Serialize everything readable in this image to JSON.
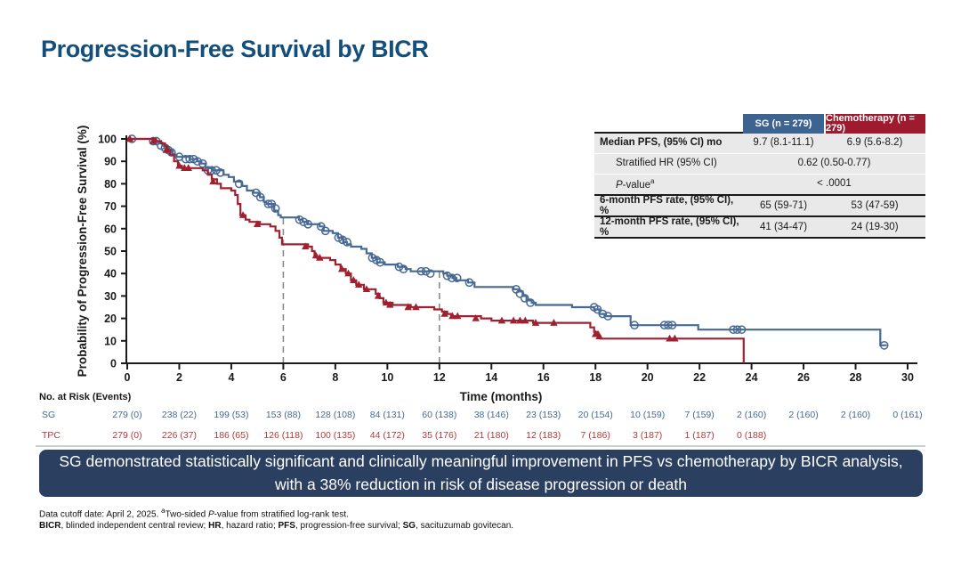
{
  "slide": {
    "title": "Progression-Free Survival by BICR"
  },
  "colors": {
    "title": "#144f7c",
    "sg_curve": "#476a94",
    "tpc_curve": "#a02030",
    "sg_header_bg": "#3d6390",
    "tpc_header_bg": "#9e1b2f",
    "banner_bg": "#2b4060",
    "risk_sg_text": "#476a94",
    "risk_tpc_text": "#b23a3a",
    "dashed_line": "#8a8a8a"
  },
  "stats_table": {
    "columns": [
      {
        "label": "SG (n = 279)"
      },
      {
        "label": "Chemotherapy (n = 279)"
      }
    ],
    "rows": [
      {
        "label": "Median PFS, (95% CI) mo",
        "v1": "9.7 (8.1-11.1)",
        "v2": "6.9 (5.6-8.2)"
      },
      {
        "label": "Stratified HR (95% CI)",
        "vspan": "0.62 (0.50-0.77)"
      },
      {
        "label_i": "P",
        "label_rest": "-value",
        "label_sup": "a",
        "vspan": "< .0001"
      },
      {
        "label": "6-month PFS rate, (95% CI), %",
        "v1": "65 (59-71)",
        "v2": "53 (47-59)"
      },
      {
        "label": "12-month PFS rate, (95% CI), %",
        "v1": "41 (34-47)",
        "v2": "24 (19-30)"
      }
    ]
  },
  "banner": {
    "line1": "SG demonstrated statistically significant and clinically meaningful improvement in PFS vs chemotherapy by BICR analysis,",
    "line2": "with a 38% reduction in risk of disease progression or death"
  },
  "footnotes": {
    "line1": {
      "t1": "Data cutoff date: April 2, 2025. ",
      "sup": "a",
      "t2": "Two-sided ",
      "i": "P",
      "t3": "-value from stratified log-rank test."
    },
    "line2": {
      "b1": "BICR",
      "t1": ", blinded independent central review; ",
      "b2": "HR",
      "t2": ", hazard ratio; ",
      "b3": "PFS",
      "t3": ", progression-free survival; ",
      "b4": "SG",
      "t4": ", sacituzumab govitecan."
    }
  },
  "chart_data": {
    "type": "line",
    "subtype": "kaplan-meier-step",
    "title": "",
    "xlabel": "Time (months)",
    "ylabel": "Probability of Progression-Free Survival (%)",
    "xlim": [
      0,
      30
    ],
    "ylim": [
      0,
      100
    ],
    "xticks": [
      0,
      2,
      4,
      6,
      8,
      10,
      12,
      14,
      16,
      18,
      20,
      22,
      24,
      26,
      28,
      30
    ],
    "yticks": [
      0,
      10,
      20,
      30,
      40,
      50,
      60,
      70,
      80,
      90,
      100
    ],
    "grid": false,
    "reference_lines": [
      {
        "x": 6,
        "top": 65
      },
      {
        "x": 12,
        "top": 41
      }
    ],
    "series": [
      {
        "name": "SG",
        "color": "#476a94",
        "marker": "circle",
        "steps": [
          [
            0,
            100
          ],
          [
            0.85,
            100
          ],
          [
            1.05,
            99
          ],
          [
            1.2,
            98
          ],
          [
            1.35,
            97
          ],
          [
            1.5,
            96
          ],
          [
            1.6,
            95
          ],
          [
            1.75,
            93
          ],
          [
            1.9,
            92
          ],
          [
            2.4,
            91
          ],
          [
            2.7,
            90
          ],
          [
            2.85,
            89
          ],
          [
            3.0,
            87
          ],
          [
            3.3,
            86
          ],
          [
            3.7,
            84
          ],
          [
            3.9,
            83
          ],
          [
            4.1,
            81
          ],
          [
            4.4,
            79
          ],
          [
            4.6,
            77
          ],
          [
            4.85,
            76
          ],
          [
            5.1,
            74
          ],
          [
            5.25,
            72
          ],
          [
            5.35,
            71
          ],
          [
            5.65,
            68
          ],
          [
            5.8,
            66
          ],
          [
            5.9,
            65
          ],
          [
            6.6,
            64
          ],
          [
            6.75,
            63
          ],
          [
            6.95,
            62
          ],
          [
            7.4,
            61
          ],
          [
            7.55,
            59
          ],
          [
            7.9,
            58
          ],
          [
            8.1,
            56
          ],
          [
            8.3,
            54
          ],
          [
            8.45,
            53
          ],
          [
            8.6,
            52
          ],
          [
            9.0,
            51
          ],
          [
            9.2,
            49
          ],
          [
            9.4,
            47
          ],
          [
            9.6,
            45
          ],
          [
            9.9,
            44
          ],
          [
            10.4,
            43
          ],
          [
            10.7,
            42
          ],
          [
            10.9,
            41
          ],
          [
            12.15,
            40
          ],
          [
            12.3,
            39
          ],
          [
            12.5,
            38
          ],
          [
            12.65,
            37
          ],
          [
            13.1,
            36
          ],
          [
            13.35,
            34
          ],
          [
            14.85,
            33
          ],
          [
            15.05,
            32
          ],
          [
            15.2,
            30
          ],
          [
            15.35,
            28
          ],
          [
            15.55,
            27
          ],
          [
            15.7,
            26
          ],
          [
            17.1,
            25
          ],
          [
            17.95,
            24
          ],
          [
            18.15,
            22
          ],
          [
            18.35,
            21
          ],
          [
            19.35,
            17
          ],
          [
            21.95,
            15
          ],
          [
            28.95,
            8
          ],
          [
            29.2,
            8
          ]
        ],
        "censors": [
          [
            0.18,
            100
          ],
          [
            1.0,
            99
          ],
          [
            1.12,
            99
          ],
          [
            1.3,
            97
          ],
          [
            1.45,
            96
          ],
          [
            1.58,
            95
          ],
          [
            1.7,
            94
          ],
          [
            2.0,
            92
          ],
          [
            2.25,
            91
          ],
          [
            2.4,
            91
          ],
          [
            2.55,
            91
          ],
          [
            2.7,
            90
          ],
          [
            2.9,
            89
          ],
          [
            3.1,
            86
          ],
          [
            3.25,
            86
          ],
          [
            3.42,
            86
          ],
          [
            3.58,
            85
          ],
          [
            4.3,
            80
          ],
          [
            4.95,
            76
          ],
          [
            5.12,
            74
          ],
          [
            5.42,
            71
          ],
          [
            5.55,
            71
          ],
          [
            5.7,
            69
          ],
          [
            6.62,
            64
          ],
          [
            6.78,
            63
          ],
          [
            6.95,
            62
          ],
          [
            7.45,
            61
          ],
          [
            7.62,
            59
          ],
          [
            8.12,
            56
          ],
          [
            8.28,
            55
          ],
          [
            8.45,
            54
          ],
          [
            9.42,
            47
          ],
          [
            9.58,
            46
          ],
          [
            9.72,
            45
          ],
          [
            10.45,
            43
          ],
          [
            10.62,
            42
          ],
          [
            11.3,
            41
          ],
          [
            11.48,
            41
          ],
          [
            11.65,
            40
          ],
          [
            12.3,
            39
          ],
          [
            12.48,
            38
          ],
          [
            12.68,
            38
          ],
          [
            13.15,
            36
          ],
          [
            14.95,
            33
          ],
          [
            15.1,
            31
          ],
          [
            15.28,
            29
          ],
          [
            15.5,
            27
          ],
          [
            17.95,
            25
          ],
          [
            18.08,
            24
          ],
          [
            18.28,
            22
          ],
          [
            18.48,
            21
          ],
          [
            19.5,
            17
          ],
          [
            20.65,
            17
          ],
          [
            20.8,
            17
          ],
          [
            20.95,
            17
          ],
          [
            23.3,
            15
          ],
          [
            23.45,
            15
          ],
          [
            23.62,
            15
          ],
          [
            29.1,
            8
          ]
        ]
      },
      {
        "name": "TPC",
        "color": "#a02030",
        "marker": "triangle",
        "steps": [
          [
            0,
            100
          ],
          [
            0.95,
            100
          ],
          [
            1.1,
            99
          ],
          [
            1.3,
            98
          ],
          [
            1.45,
            97
          ],
          [
            1.55,
            95
          ],
          [
            1.65,
            93
          ],
          [
            1.8,
            90
          ],
          [
            1.95,
            88
          ],
          [
            2.1,
            87
          ],
          [
            2.9,
            86
          ],
          [
            3.1,
            84
          ],
          [
            3.25,
            82
          ],
          [
            3.45,
            80
          ],
          [
            3.6,
            78
          ],
          [
            4.0,
            77
          ],
          [
            4.15,
            75
          ],
          [
            4.25,
            71
          ],
          [
            4.35,
            66
          ],
          [
            4.55,
            64
          ],
          [
            4.7,
            63
          ],
          [
            5.1,
            62
          ],
          [
            5.5,
            61
          ],
          [
            5.7,
            59
          ],
          [
            5.85,
            56
          ],
          [
            5.95,
            53
          ],
          [
            6.95,
            52
          ],
          [
            7.1,
            50
          ],
          [
            7.2,
            48
          ],
          [
            7.3,
            47
          ],
          [
            7.8,
            46
          ],
          [
            8.0,
            44
          ],
          [
            8.2,
            42
          ],
          [
            8.4,
            40
          ],
          [
            8.6,
            37
          ],
          [
            8.8,
            35
          ],
          [
            9.1,
            33
          ],
          [
            9.55,
            31
          ],
          [
            9.7,
            29
          ],
          [
            9.85,
            27
          ],
          [
            10.2,
            26
          ],
          [
            10.9,
            25
          ],
          [
            11.8,
            24
          ],
          [
            12.1,
            23
          ],
          [
            12.3,
            22
          ],
          [
            12.45,
            21
          ],
          [
            13.6,
            20
          ],
          [
            14.0,
            19
          ],
          [
            15.6,
            18
          ],
          [
            17.8,
            16
          ],
          [
            17.95,
            14
          ],
          [
            18.1,
            12
          ],
          [
            18.2,
            11
          ],
          [
            23.7,
            11
          ],
          [
            23.7,
            0
          ]
        ],
        "censors": [
          [
            0.1,
            100
          ],
          [
            1.0,
            99
          ],
          [
            1.5,
            95
          ],
          [
            2.0,
            88
          ],
          [
            2.2,
            87
          ],
          [
            2.35,
            87
          ],
          [
            3.3,
            81
          ],
          [
            4.45,
            66
          ],
          [
            5.0,
            62
          ],
          [
            6.85,
            52
          ],
          [
            7.25,
            48
          ],
          [
            7.4,
            47
          ],
          [
            8.25,
            42
          ],
          [
            8.5,
            40
          ],
          [
            8.7,
            37
          ],
          [
            8.9,
            35
          ],
          [
            9.2,
            33
          ],
          [
            9.65,
            30
          ],
          [
            9.95,
            27
          ],
          [
            10.1,
            26
          ],
          [
            10.8,
            25
          ],
          [
            11.1,
            25
          ],
          [
            12.2,
            22
          ],
          [
            12.5,
            21
          ],
          [
            12.7,
            21
          ],
          [
            13.4,
            20
          ],
          [
            14.4,
            19
          ],
          [
            14.85,
            19
          ],
          [
            15.1,
            19
          ],
          [
            15.3,
            19
          ],
          [
            15.7,
            18
          ],
          [
            16.4,
            18
          ],
          [
            18.0,
            13
          ],
          [
            18.15,
            12
          ],
          [
            20.85,
            11
          ],
          [
            21.05,
            11
          ]
        ]
      }
    ],
    "risk_table": {
      "label": "No. at Risk (Events)",
      "rows": [
        {
          "name": "SG",
          "color": "#476a94",
          "values": [
            "279 (0)",
            "238 (22)",
            "199 (53)",
            "153 (88)",
            "128 (108)",
            "84 (131)",
            "60 (138)",
            "38 (146)",
            "23 (153)",
            "20 (154)",
            "10 (159)",
            "7 (159)",
            "2 (160)",
            "2 (160)",
            "2 (160)",
            "0 (161)"
          ]
        },
        {
          "name": "TPC",
          "color": "#b23a3a",
          "values": [
            "279 (0)",
            "226 (37)",
            "186 (65)",
            "126 (118)",
            "100 (135)",
            "44 (172)",
            "35 (176)",
            "21 (180)",
            "12 (183)",
            "7 (186)",
            "3 (187)",
            "1 (187)",
            "0 (188)"
          ]
        }
      ]
    }
  }
}
